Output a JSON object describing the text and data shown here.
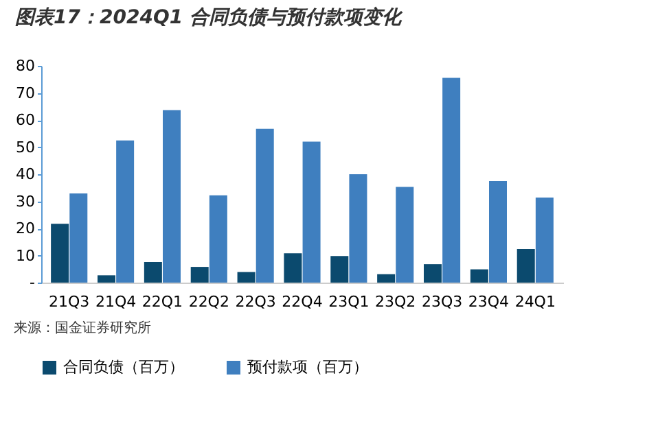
{
  "chart_data": {
    "type": "bar",
    "title": "图表17：2024Q1 合同负债与预付款项变化",
    "categories": [
      "21Q3",
      "21Q4",
      "22Q1",
      "22Q2",
      "22Q3",
      "22Q4",
      "23Q1",
      "23Q2",
      "23Q3",
      "23Q4",
      "24Q1"
    ],
    "series": [
      {
        "name": "合同负债（百万）",
        "color": "#0b4a6e",
        "values": [
          21.7,
          2.7,
          7.6,
          5.8,
          3.9,
          10.8,
          9.8,
          3.1,
          6.8,
          4.9,
          12.4
        ]
      },
      {
        "name": "预付款项（百万）",
        "color": "#3f7fbf",
        "values": [
          32.9,
          52.5,
          63.7,
          32.2,
          56.8,
          52.0,
          40.0,
          35.3,
          75.6,
          37.5,
          31.4
        ]
      }
    ],
    "ylim": [
      0,
      80
    ],
    "yticks": [
      {
        "value": 0,
        "label": "-"
      },
      10,
      20,
      30,
      40,
      50,
      60,
      70,
      80
    ],
    "grid": false,
    "legend": "bottom",
    "annotations": [
      "来源：国金证券研究所"
    ]
  }
}
